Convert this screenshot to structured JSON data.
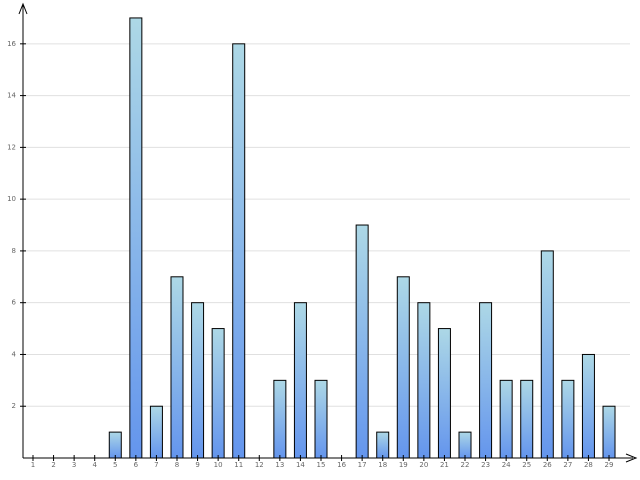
{
  "chart_data": {
    "type": "bar",
    "categories": [
      "1",
      "2",
      "3",
      "4",
      "5",
      "6",
      "7",
      "8",
      "9",
      "10",
      "11",
      "12",
      "13",
      "14",
      "15",
      "16",
      "17",
      "18",
      "19",
      "20",
      "21",
      "22",
      "23",
      "24",
      "25",
      "26",
      "27",
      "28",
      "29"
    ],
    "values": [
      0,
      0,
      0,
      0,
      1,
      17,
      2,
      7,
      6,
      5,
      16,
      0,
      3,
      6,
      3,
      0,
      9,
      1,
      7,
      6,
      5,
      1,
      6,
      3,
      3,
      8,
      3,
      4,
      2
    ],
    "color": "#6495ed",
    "ylim": [
      0,
      17.5
    ],
    "yticks": [
      2,
      4,
      6,
      8,
      10,
      12,
      14,
      16
    ],
    "grid": true
  }
}
